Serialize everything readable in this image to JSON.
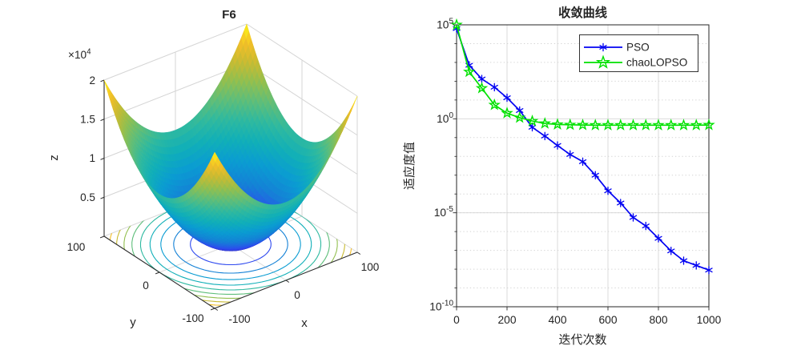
{
  "figure": {
    "background": "#ffffff",
    "axis_color": "#262626",
    "grid_color": "#dbdbdb",
    "minor_grid_color": "#d3d3d3"
  },
  "chart_data": [
    {
      "type": "surface",
      "title": "F6",
      "xlabel": "x",
      "ylabel": "y",
      "zlabel": "z",
      "x_range": [
        -100,
        100
      ],
      "y_range": [
        -100,
        100
      ],
      "z_range": [
        0,
        20000
      ],
      "x_ticks": [
        -100,
        0,
        100
      ],
      "y_ticks": [
        100,
        0,
        -100
      ],
      "z_ticks": [
        2,
        1.5,
        1,
        0.5
      ],
      "z_multiplier_base": "×10",
      "z_multiplier_exp": "4",
      "colormap": "parula",
      "surface_function": "z = x^2 + y^2 (bowl, minimum 0 at origin, corner peaks 2×10^4)",
      "contour_levels": [
        2000,
        4000,
        6000,
        8000,
        10000,
        12000,
        14000,
        16000,
        18000
      ],
      "contour_projection": "base plane"
    },
    {
      "type": "line",
      "title": "收敛曲线",
      "xlabel": "迭代次数",
      "ylabel": "适应度值",
      "x_range": [
        0,
        1000
      ],
      "y_scale": "log10",
      "y_tick_exponents": [
        5,
        0,
        -5,
        -10
      ],
      "x_ticks": [
        0,
        200,
        400,
        600,
        800,
        1000
      ],
      "grid": "major solid, minor horizontal dotted",
      "legend_position": "upper right",
      "x": [
        0,
        50,
        100,
        150,
        200,
        250,
        300,
        350,
        400,
        450,
        500,
        550,
        600,
        650,
        700,
        750,
        800,
        850,
        900,
        950,
        1000
      ],
      "series": [
        {
          "name": "PSO",
          "color": "#0202f2",
          "marker": "asterisk",
          "log10_values": [
            4.8,
            2.85,
            2.12,
            1.68,
            1.12,
            0.44,
            -0.45,
            -0.92,
            -1.42,
            -1.9,
            -2.28,
            -3.0,
            -3.83,
            -4.48,
            -5.25,
            -5.7,
            -6.36,
            -7.03,
            -7.55,
            -7.8,
            -8.05
          ]
        },
        {
          "name": "chaoLOPSO",
          "color": "#00e100",
          "marker": "pentagram",
          "log10_values": [
            5.0,
            2.5,
            1.63,
            0.74,
            0.3,
            0.06,
            -0.12,
            -0.25,
            -0.3,
            -0.32,
            -0.33,
            -0.34,
            -0.34,
            -0.34,
            -0.34,
            -0.34,
            -0.34,
            -0.34,
            -0.34,
            -0.34,
            -0.33
          ]
        }
      ]
    }
  ]
}
